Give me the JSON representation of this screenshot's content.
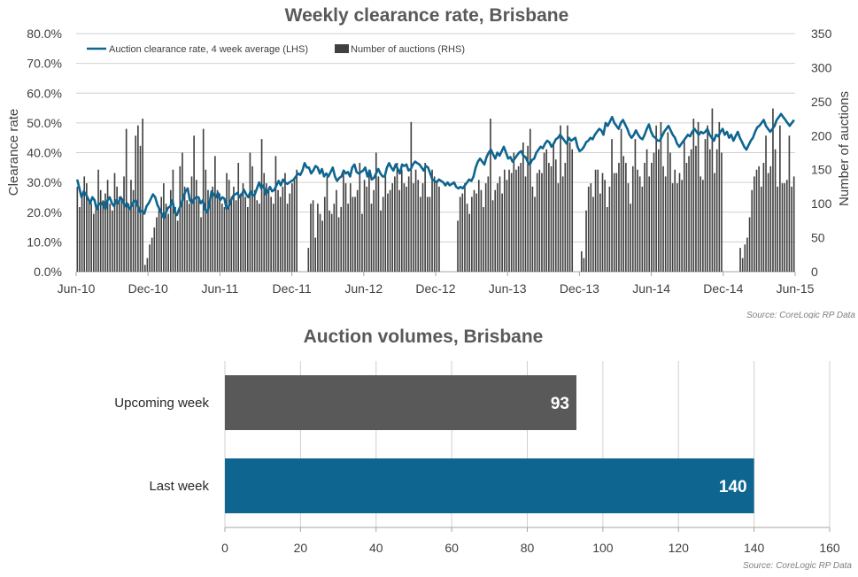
{
  "chart_data": [
    {
      "type": "line",
      "title": "Weekly clearance rate, Brisbane",
      "ylabel": "Clearance rate",
      "y2label": "Number of auctions",
      "ylim": [
        0,
        80
      ],
      "y2lim": [
        0,
        350
      ],
      "yticks": [
        "0.0%",
        "10.0%",
        "20.0%",
        "30.0%",
        "40.0%",
        "50.0%",
        "60.0%",
        "70.0%",
        "80.0%"
      ],
      "y2ticks": [
        "0",
        "50",
        "100",
        "150",
        "200",
        "250",
        "300",
        "350"
      ],
      "xticks": [
        "Jun-10",
        "Dec-10",
        "Jun-11",
        "Dec-11",
        "Jun-12",
        "Dec-12",
        "Jun-13",
        "Dec-13",
        "Jun-14",
        "Dec-14",
        "Jun-15"
      ],
      "legend": [
        "Auction clearance rate, 4 week average (LHS)",
        "Number of auctions (RHS)"
      ],
      "legend_position": "top-left",
      "grid": true,
      "colors": {
        "line": "#0e6590",
        "bars": "#404040"
      },
      "series": [
        {
          "name": "Number of auctions (RHS)",
          "axis": "right",
          "values": [
            125,
            95,
            110,
            140,
            130,
            105,
            100,
            85,
            95,
            150,
            120,
            105,
            115,
            135,
            100,
            90,
            145,
            125,
            110,
            105,
            140,
            210,
            100,
            135,
            120,
            200,
            215,
            185,
            225,
            10,
            20,
            40,
            50,
            65,
            80,
            95,
            110,
            130,
            100,
            85,
            120,
            150,
            95,
            75,
            155,
            175,
            125,
            105,
            100,
            140,
            200,
            135,
            110,
            80,
            210,
            150,
            120,
            110,
            125,
            170,
            120,
            115,
            100,
            95,
            145,
            135,
            110,
            125,
            105,
            160,
            115,
            130,
            110,
            95,
            175,
            155,
            120,
            105,
            100,
            195,
            145,
            130,
            120,
            110,
            100,
            170,
            120,
            110,
            125,
            145,
            100,
            115,
            130,
            135,
            150,
            0,
            0,
            0,
            0,
            35,
            100,
            105,
            50,
            100,
            85,
            75,
            110,
            140,
            90,
            85,
            100,
            120,
            80,
            95,
            145,
            130,
            100,
            130,
            110,
            110,
            120,
            160,
            85,
            135,
            125,
            150,
            100,
            120,
            175,
            140,
            90,
            110,
            140,
            115,
            120,
            130,
            140,
            160,
            120,
            150,
            130,
            125,
            140,
            220,
            130,
            150,
            135,
            110,
            130,
            160,
            110,
            110,
            150,
            140,
            130,
            125,
            0,
            0,
            0,
            0,
            0,
            0,
            0,
            75,
            110,
            115,
            130,
            100,
            85,
            110,
            120,
            115,
            135,
            120,
            95,
            130,
            140,
            225,
            105,
            120,
            130,
            140,
            115,
            150,
            135,
            150,
            145,
            175,
            150,
            155,
            160,
            190,
            140,
            185,
            210,
            125,
            110,
            145,
            150,
            145,
            175,
            180,
            160,
            155,
            190,
            165,
            130,
            215,
            140,
            160,
            215,
            190,
            180,
            0,
            0,
            0,
            30,
            20,
            90,
            125,
            130,
            110,
            150,
            150,
            115,
            145,
            135,
            95,
            125,
            195,
            145,
            145,
            160,
            210,
            170,
            160,
            130,
            100,
            155,
            195,
            150,
            140,
            125,
            160,
            180,
            140,
            160,
            175,
            215,
            180,
            220,
            155,
            140,
            205,
            175,
            130,
            150,
            130,
            145,
            135,
            195,
            160,
            170,
            180,
            225,
            185,
            220,
            140,
            135,
            195,
            215,
            180,
            240,
            145,
            180,
            220,
            175,
            0,
            0,
            0,
            0,
            0,
            0,
            0,
            35,
            20,
            40,
            50,
            80,
            120,
            140,
            150,
            155,
            125,
            160,
            200,
            145,
            155,
            240,
            180,
            125,
            215,
            130,
            130,
            135,
            200,
            125,
            140
          ]
        },
        {
          "name": "Auction clearance rate, 4 week average (LHS)",
          "axis": "left",
          "values": [
            31.0,
            28.0,
            25.0,
            27.0,
            26.0,
            24.5,
            23.0,
            25.0,
            24.0,
            21.0,
            23.0,
            22.5,
            23.5,
            21.0,
            24.0,
            25.0,
            23.0,
            22.0,
            24.0,
            23.0,
            25.0,
            24.0,
            22.0,
            23.0,
            21.0,
            22.0,
            23.5,
            24.0,
            22.0,
            20.0,
            20.5,
            19.5,
            22.0,
            23.0,
            24.5,
            26.0,
            25.0,
            22.5,
            21.0,
            19.5,
            18.0,
            20.0,
            21.5,
            22.0,
            24.0,
            20.0,
            19.0,
            21.0,
            22.5,
            25.0,
            27.0,
            28.0,
            24.0,
            23.0,
            24.5,
            25.0,
            25.0,
            23.0,
            24.0,
            21.0,
            20.0,
            22.5,
            27.0,
            26.0,
            25.0,
            26.5,
            24.0,
            25.0,
            24.5,
            21.0,
            22.0,
            24.0,
            25.5,
            26.0,
            26.5,
            25.0,
            26.0,
            27.5,
            26.0,
            25.0,
            27.0,
            25.5,
            26.0,
            28.0,
            30.0,
            28.0,
            29.0,
            26.0,
            27.0,
            28.5,
            27.0,
            27.5,
            29.0,
            30.5,
            29.0,
            31.0,
            30.0,
            29.5,
            30.0,
            30.5,
            31.0,
            32.0,
            33.0,
            32.5,
            34.0,
            36.5,
            35.0,
            35.0,
            33.0,
            34.0,
            35.5,
            35.0,
            33.0,
            34.5,
            32.0,
            33.0,
            32.0,
            33.5,
            35.0,
            32.0,
            30.5,
            31.5,
            32.0,
            34.0,
            33.0,
            33.5,
            32.0,
            35.0,
            36.0,
            33.5,
            33.0,
            33.5,
            34.0,
            35.0,
            32.0,
            34.0,
            31.0,
            31.5,
            33.0,
            34.5,
            33.0,
            32.0,
            32.0,
            35.0,
            36.5,
            35.0,
            34.0,
            36.0,
            34.5,
            33.0,
            36.0,
            35.5,
            36.0,
            34.0,
            34.5,
            36.0,
            37.0,
            36.5,
            36.0,
            35.0,
            34.0,
            35.5,
            35.0,
            33.0,
            31.0,
            30.5,
            30.0,
            31.0,
            30.5,
            30.0,
            29.0,
            30.0,
            29.0,
            29.5,
            30.0,
            28.5,
            28.0,
            28.5,
            28.0,
            29.0,
            30.0,
            31.0,
            30.5,
            32.0,
            35.0,
            37.0,
            38.0,
            37.0,
            36.0,
            38.5,
            40.0,
            41.0,
            39.5,
            38.0,
            40.0,
            39.0,
            40.5,
            42.0,
            40.0,
            38.0,
            38.5,
            37.0,
            38.0,
            39.0,
            40.0,
            40.5,
            39.0,
            38.5,
            37.0,
            36.0,
            37.5,
            38.0,
            40.0,
            41.0,
            42.0,
            41.5,
            43.0,
            44.0,
            43.5,
            42.0,
            43.0,
            44.5,
            45.0,
            46.0,
            45.0,
            44.0,
            43.0,
            45.0,
            44.0,
            44.5,
            45.0,
            42.0,
            40.5,
            41.0,
            42.0,
            43.5,
            44.0,
            45.0,
            44.5,
            46.0,
            47.0,
            48.0,
            47.5,
            46.0,
            50.0,
            49.0,
            50.5,
            52.0,
            50.0,
            49.0,
            48.0,
            50.0,
            51.0,
            49.5,
            48.0,
            46.0,
            45.0,
            46.0,
            47.5,
            46.0,
            45.0,
            44.5,
            46.0,
            48.0,
            49.5,
            47.0,
            45.5,
            45.0,
            44.0,
            44.0,
            45.5,
            47.0,
            48.0,
            49.0,
            47.5,
            46.0,
            45.0,
            43.0,
            42.0,
            43.0,
            44.0,
            45.0,
            46.0,
            45.5,
            47.0,
            48.0,
            47.0,
            46.0,
            47.0,
            46.5,
            47.0,
            48.0,
            46.0,
            45.0,
            44.0,
            46.0,
            45.5,
            47.0,
            48.0,
            46.0,
            47.0,
            45.0,
            46.0,
            44.0,
            45.5,
            47.0,
            45.0,
            43.5,
            42.0,
            41.0,
            42.5,
            44.0,
            45.0,
            47.0,
            48.5,
            49.0,
            50.0,
            51.0,
            49.0,
            48.0,
            47.0,
            48.0,
            49.0,
            51.0,
            52.0,
            53.0,
            52.0,
            51.0,
            50.0,
            49.0,
            50.0,
            51.0
          ]
        }
      ]
    },
    {
      "type": "bar",
      "orientation": "horizontal",
      "title": "Auction volumes, Brisbane",
      "categories": [
        "Upcoming week",
        "Last week"
      ],
      "values": [
        93,
        140
      ],
      "xlim": [
        0,
        160
      ],
      "xticks": [
        "0",
        "20",
        "40",
        "60",
        "80",
        "100",
        "120",
        "140",
        "160"
      ],
      "grid": true,
      "colors": {
        "Upcoming week": "#595959",
        "Last week": "#0e6590"
      }
    }
  ],
  "sources": {
    "top": "Source: CoreLogic  RP Data",
    "bottom": "Source: CoreLogic  RP Data"
  }
}
